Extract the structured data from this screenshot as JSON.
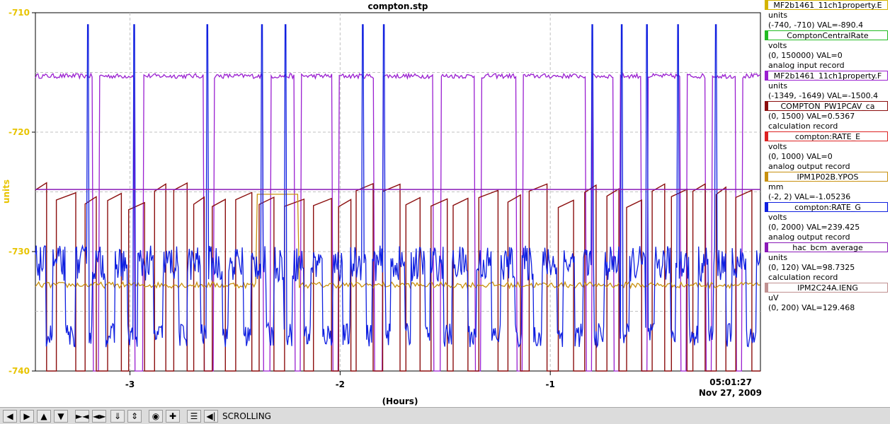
{
  "chart_data": {
    "type": "line",
    "title": "compton.stp",
    "xlabel": "(Hours)",
    "ylabel": "units",
    "xlim": [
      -3.45,
      0.0
    ],
    "ylim": [
      -740,
      -710
    ],
    "xticks": [
      -3,
      -2,
      -1
    ],
    "yticks": [
      -740,
      -730,
      -720,
      -710
    ],
    "grid": true,
    "time_label": "05:01:27",
    "date_label": "Nov 27, 2009",
    "series": [
      {
        "name": "MF2b1461_11ch1property.E",
        "color": "#d4b400",
        "units": "units",
        "range": "(-740, -710)",
        "value": "VAL=-890.4",
        "desc": ""
      },
      {
        "name": "ComptonCentralRate",
        "color": "#22bb22",
        "units": "volts",
        "range": "(0, 150000)",
        "value": "VAL=0",
        "desc": "analog input record"
      },
      {
        "name": "MF2b1461_11ch1property.F",
        "color": "#9a1fd0",
        "units": "units",
        "range": "(-1349, -1649)",
        "value": "VAL=-1500.4",
        "desc": ""
      },
      {
        "name": "COMPTON_PW1PCAV_ca",
        "color": "#8b0e0e",
        "units": "",
        "range": "(0, 1500)",
        "value": "VAL=0.5367",
        "desc": "calculation record"
      },
      {
        "name": "compton:RATE_E",
        "color": "#dd2222",
        "units": "volts",
        "range": "(0, 1000)",
        "value": "VAL=0",
        "desc": "analog output record"
      },
      {
        "name": "IPM1P02B.YPOS",
        "color": "#c8900e",
        "units": "mm",
        "range": "(-2, 2)",
        "value": "VAL=-1.05236",
        "desc": ""
      },
      {
        "name": "compton:RATE_G",
        "color": "#1020e0",
        "units": "volts",
        "range": "(0, 2000)",
        "value": "VAL=239.425",
        "desc": "analog output record"
      },
      {
        "name": "hac_bcm_average",
        "color": "#8a1ab8",
        "units": "units",
        "range": "(0, 120)",
        "value": "VAL=98.7325",
        "desc": "calculation record"
      },
      {
        "name": "IPM2C24A.IENG",
        "color": "#c09090",
        "units": "uV",
        "range": "(0, 200)",
        "value": "VAL=129.468",
        "desc": ""
      }
    ]
  },
  "toolbar": {
    "buttons": [
      "scroll-left",
      "scroll-right",
      "scroll-up",
      "scroll-down",
      "zoom-in-horizontal",
      "zoom-out-horizontal",
      "zoom-in-vertical",
      "zoom-out-vertical",
      "stop",
      "add",
      "autoscale",
      "back"
    ],
    "status": "SCROLLING"
  }
}
